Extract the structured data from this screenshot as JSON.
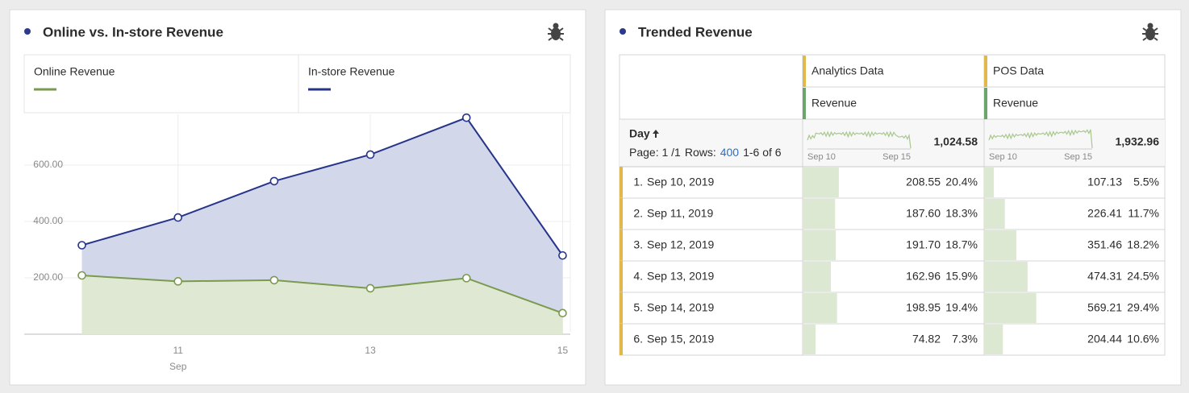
{
  "chart_data": {
    "type": "area",
    "stacked": true,
    "title": "Online vs. In-store Revenue",
    "x": [
      10,
      11,
      12,
      13,
      14,
      15
    ],
    "xlim": [
      9.4,
      15.08
    ],
    "xticks": [
      11,
      13,
      15
    ],
    "x_sublabel": "Sep",
    "ylim": [
      0,
      780
    ],
    "yticks": [
      {
        "value": 200,
        "label": "200.00"
      },
      {
        "value": 400,
        "label": "400.00"
      },
      {
        "value": 600,
        "label": "600.00"
      }
    ],
    "grid": true,
    "series": [
      {
        "name": "Online Revenue",
        "color": "#7a9a4e",
        "fill": "#dfe8d3",
        "values": [
          208.55,
          187.6,
          191.7,
          162.96,
          198.95,
          74.82
        ]
      },
      {
        "name": "In-store Revenue",
        "color": "#26348a",
        "fill": "#d3d7ea",
        "values": [
          107.13,
          226.41,
          351.46,
          474.31,
          569.21,
          204.44
        ]
      }
    ]
  },
  "table_panel": {
    "title": "Trended Revenue",
    "columns": [
      {
        "group": "Analytics Data",
        "metric": "Revenue",
        "total": "1,024.58"
      },
      {
        "group": "POS Data",
        "metric": "Revenue",
        "total": "1,932.96"
      }
    ],
    "dimension": "Day",
    "page_label": "Page: 1 /1",
    "rows_label": "Rows:",
    "rows_value": "400",
    "range": "1-6 of 6",
    "spark_start": "Sep 10",
    "spark_end": "Sep 15",
    "rows": [
      {
        "rank": "1.",
        "day": "Sep 10, 2019",
        "cells": [
          {
            "value": "208.55",
            "pct": {
              "value": 20.4,
              "label": "20.4%"
            }
          },
          {
            "value": "107.13",
            "pct": {
              "value": 5.5,
              "label": "5.5%"
            }
          }
        ]
      },
      {
        "rank": "2.",
        "day": "Sep 11, 2019",
        "cells": [
          {
            "value": "187.60",
            "pct": {
              "value": 18.3,
              "label": "18.3%"
            }
          },
          {
            "value": "226.41",
            "pct": {
              "value": 11.7,
              "label": "11.7%"
            }
          }
        ]
      },
      {
        "rank": "3.",
        "day": "Sep 12, 2019",
        "cells": [
          {
            "value": "191.70",
            "pct": {
              "value": 18.7,
              "label": "18.7%"
            }
          },
          {
            "value": "351.46",
            "pct": {
              "value": 18.2,
              "label": "18.2%"
            }
          }
        ]
      },
      {
        "rank": "4.",
        "day": "Sep 13, 2019",
        "cells": [
          {
            "value": "162.96",
            "pct": {
              "value": 15.9,
              "label": "15.9%"
            }
          },
          {
            "value": "474.31",
            "pct": {
              "value": 24.5,
              "label": "24.5%"
            }
          }
        ]
      },
      {
        "rank": "5.",
        "day": "Sep 14, 2019",
        "cells": [
          {
            "value": "198.95",
            "pct": {
              "value": 19.4,
              "label": "19.4%"
            }
          },
          {
            "value": "569.21",
            "pct": {
              "value": 29.4,
              "label": "29.4%"
            }
          }
        ]
      },
      {
        "rank": "6.",
        "day": "Sep 15, 2019",
        "cells": [
          {
            "value": "74.82",
            "pct": {
              "value": 7.3,
              "label": "7.3%"
            }
          },
          {
            "value": "204.44",
            "pct": {
              "value": 10.6,
              "label": "10.6%"
            }
          }
        ]
      }
    ]
  }
}
